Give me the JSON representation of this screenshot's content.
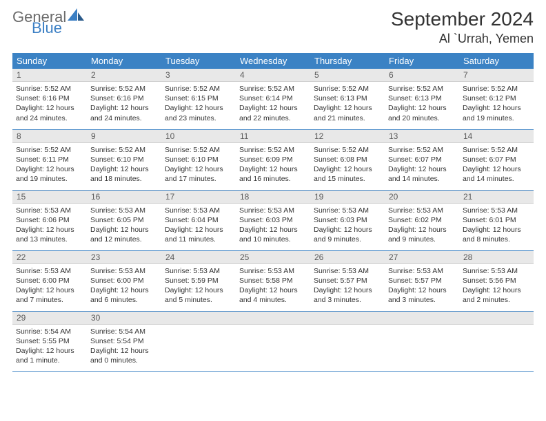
{
  "brand": {
    "main": "General",
    "sub": "Blue"
  },
  "title": "September 2024",
  "location": "Al `Urrah, Yemen",
  "colors": {
    "header_bg": "#3b82c4",
    "header_text": "#ffffff",
    "daynum_bg": "#e8e8e8",
    "border": "#3b82c4",
    "brand_gray": "#6b6b6b",
    "brand_blue": "#3b7fc4"
  },
  "weekdays": [
    "Sunday",
    "Monday",
    "Tuesday",
    "Wednesday",
    "Thursday",
    "Friday",
    "Saturday"
  ],
  "weeks": [
    [
      {
        "n": "1",
        "sr": "Sunrise: 5:52 AM",
        "ss": "Sunset: 6:16 PM",
        "d1": "Daylight: 12 hours",
        "d2": "and 24 minutes."
      },
      {
        "n": "2",
        "sr": "Sunrise: 5:52 AM",
        "ss": "Sunset: 6:16 PM",
        "d1": "Daylight: 12 hours",
        "d2": "and 24 minutes."
      },
      {
        "n": "3",
        "sr": "Sunrise: 5:52 AM",
        "ss": "Sunset: 6:15 PM",
        "d1": "Daylight: 12 hours",
        "d2": "and 23 minutes."
      },
      {
        "n": "4",
        "sr": "Sunrise: 5:52 AM",
        "ss": "Sunset: 6:14 PM",
        "d1": "Daylight: 12 hours",
        "d2": "and 22 minutes."
      },
      {
        "n": "5",
        "sr": "Sunrise: 5:52 AM",
        "ss": "Sunset: 6:13 PM",
        "d1": "Daylight: 12 hours",
        "d2": "and 21 minutes."
      },
      {
        "n": "6",
        "sr": "Sunrise: 5:52 AM",
        "ss": "Sunset: 6:13 PM",
        "d1": "Daylight: 12 hours",
        "d2": "and 20 minutes."
      },
      {
        "n": "7",
        "sr": "Sunrise: 5:52 AM",
        "ss": "Sunset: 6:12 PM",
        "d1": "Daylight: 12 hours",
        "d2": "and 19 minutes."
      }
    ],
    [
      {
        "n": "8",
        "sr": "Sunrise: 5:52 AM",
        "ss": "Sunset: 6:11 PM",
        "d1": "Daylight: 12 hours",
        "d2": "and 19 minutes."
      },
      {
        "n": "9",
        "sr": "Sunrise: 5:52 AM",
        "ss": "Sunset: 6:10 PM",
        "d1": "Daylight: 12 hours",
        "d2": "and 18 minutes."
      },
      {
        "n": "10",
        "sr": "Sunrise: 5:52 AM",
        "ss": "Sunset: 6:10 PM",
        "d1": "Daylight: 12 hours",
        "d2": "and 17 minutes."
      },
      {
        "n": "11",
        "sr": "Sunrise: 5:52 AM",
        "ss": "Sunset: 6:09 PM",
        "d1": "Daylight: 12 hours",
        "d2": "and 16 minutes."
      },
      {
        "n": "12",
        "sr": "Sunrise: 5:52 AM",
        "ss": "Sunset: 6:08 PM",
        "d1": "Daylight: 12 hours",
        "d2": "and 15 minutes."
      },
      {
        "n": "13",
        "sr": "Sunrise: 5:52 AM",
        "ss": "Sunset: 6:07 PM",
        "d1": "Daylight: 12 hours",
        "d2": "and 14 minutes."
      },
      {
        "n": "14",
        "sr": "Sunrise: 5:52 AM",
        "ss": "Sunset: 6:07 PM",
        "d1": "Daylight: 12 hours",
        "d2": "and 14 minutes."
      }
    ],
    [
      {
        "n": "15",
        "sr": "Sunrise: 5:53 AM",
        "ss": "Sunset: 6:06 PM",
        "d1": "Daylight: 12 hours",
        "d2": "and 13 minutes."
      },
      {
        "n": "16",
        "sr": "Sunrise: 5:53 AM",
        "ss": "Sunset: 6:05 PM",
        "d1": "Daylight: 12 hours",
        "d2": "and 12 minutes."
      },
      {
        "n": "17",
        "sr": "Sunrise: 5:53 AM",
        "ss": "Sunset: 6:04 PM",
        "d1": "Daylight: 12 hours",
        "d2": "and 11 minutes."
      },
      {
        "n": "18",
        "sr": "Sunrise: 5:53 AM",
        "ss": "Sunset: 6:03 PM",
        "d1": "Daylight: 12 hours",
        "d2": "and 10 minutes."
      },
      {
        "n": "19",
        "sr": "Sunrise: 5:53 AM",
        "ss": "Sunset: 6:03 PM",
        "d1": "Daylight: 12 hours",
        "d2": "and 9 minutes."
      },
      {
        "n": "20",
        "sr": "Sunrise: 5:53 AM",
        "ss": "Sunset: 6:02 PM",
        "d1": "Daylight: 12 hours",
        "d2": "and 9 minutes."
      },
      {
        "n": "21",
        "sr": "Sunrise: 5:53 AM",
        "ss": "Sunset: 6:01 PM",
        "d1": "Daylight: 12 hours",
        "d2": "and 8 minutes."
      }
    ],
    [
      {
        "n": "22",
        "sr": "Sunrise: 5:53 AM",
        "ss": "Sunset: 6:00 PM",
        "d1": "Daylight: 12 hours",
        "d2": "and 7 minutes."
      },
      {
        "n": "23",
        "sr": "Sunrise: 5:53 AM",
        "ss": "Sunset: 6:00 PM",
        "d1": "Daylight: 12 hours",
        "d2": "and 6 minutes."
      },
      {
        "n": "24",
        "sr": "Sunrise: 5:53 AM",
        "ss": "Sunset: 5:59 PM",
        "d1": "Daylight: 12 hours",
        "d2": "and 5 minutes."
      },
      {
        "n": "25",
        "sr": "Sunrise: 5:53 AM",
        "ss": "Sunset: 5:58 PM",
        "d1": "Daylight: 12 hours",
        "d2": "and 4 minutes."
      },
      {
        "n": "26",
        "sr": "Sunrise: 5:53 AM",
        "ss": "Sunset: 5:57 PM",
        "d1": "Daylight: 12 hours",
        "d2": "and 3 minutes."
      },
      {
        "n": "27",
        "sr": "Sunrise: 5:53 AM",
        "ss": "Sunset: 5:57 PM",
        "d1": "Daylight: 12 hours",
        "d2": "and 3 minutes."
      },
      {
        "n": "28",
        "sr": "Sunrise: 5:53 AM",
        "ss": "Sunset: 5:56 PM",
        "d1": "Daylight: 12 hours",
        "d2": "and 2 minutes."
      }
    ],
    [
      {
        "n": "29",
        "sr": "Sunrise: 5:54 AM",
        "ss": "Sunset: 5:55 PM",
        "d1": "Daylight: 12 hours",
        "d2": "and 1 minute."
      },
      {
        "n": "30",
        "sr": "Sunrise: 5:54 AM",
        "ss": "Sunset: 5:54 PM",
        "d1": "Daylight: 12 hours",
        "d2": "and 0 minutes."
      },
      {
        "empty": true
      },
      {
        "empty": true
      },
      {
        "empty": true
      },
      {
        "empty": true
      },
      {
        "empty": true
      }
    ]
  ]
}
